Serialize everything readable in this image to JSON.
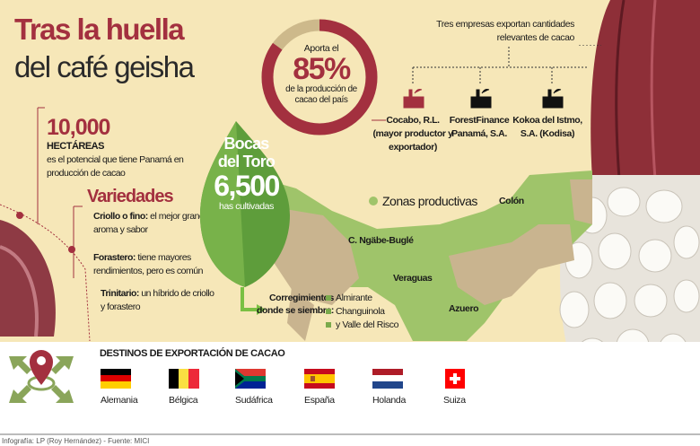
{
  "title": {
    "line1": "Tras la huella",
    "line2": "del café geisha"
  },
  "hectares": {
    "value": "10,000",
    "unit": "HECTÁREAS",
    "desc": "es el potencial que tiene Panamá en producción de cacao"
  },
  "varieties": {
    "title": "Variedades",
    "items": [
      {
        "name": "Criollo o fino:",
        "desc": " el mejor grano por aroma y sabor"
      },
      {
        "name": "Forastero:",
        "desc": " tiene mayores rendimientos, pero es común"
      },
      {
        "name": "Trinitario:",
        "desc": " un híbrido de criollo y forastero"
      }
    ]
  },
  "bocas": {
    "line1": "Bocas",
    "line2": "del Toro",
    "value": "6,500",
    "sub": "has cultivadas"
  },
  "share": {
    "pre": "Aporta el",
    "percent": "85%",
    "post": "de la producción de cacao del país",
    "fraction": 0.85,
    "color": "#a3303f"
  },
  "companies": {
    "intro": "Tres empresas exportan cantidades relevantes de cacao",
    "items": [
      {
        "name": "Cocabo, R.L. (mayor productor y exportador)",
        "icon": "factory-icon",
        "color": "#a3303f"
      },
      {
        "name": "ForestFinance Panamá, S.A.",
        "icon": "factory-icon",
        "color": "#111111"
      },
      {
        "name": "Kokoa del Istmo, S.A. (Kodisa)",
        "icon": "factory-icon",
        "color": "#111111"
      }
    ]
  },
  "map": {
    "legend": "Zonas productivas",
    "regions": [
      "Colón",
      "C. Ngäbe-Buglé",
      "Veraguas",
      "Azuero"
    ],
    "corregimientos_label": "Corregimientos donde se siembra:",
    "corregimientos": [
      "Almirante",
      "Changuinola",
      "y Valle del Risco"
    ]
  },
  "exports": {
    "title": "DESTINOS DE EXPORTACIÓN DE CACAO",
    "countries": [
      "Alemania",
      "Bélgica",
      "Sudáfrica",
      "España",
      "Holanda",
      "Suiza"
    ]
  },
  "footer": "Infografía: LP (Roy Hernández) - Fuente: MICI"
}
